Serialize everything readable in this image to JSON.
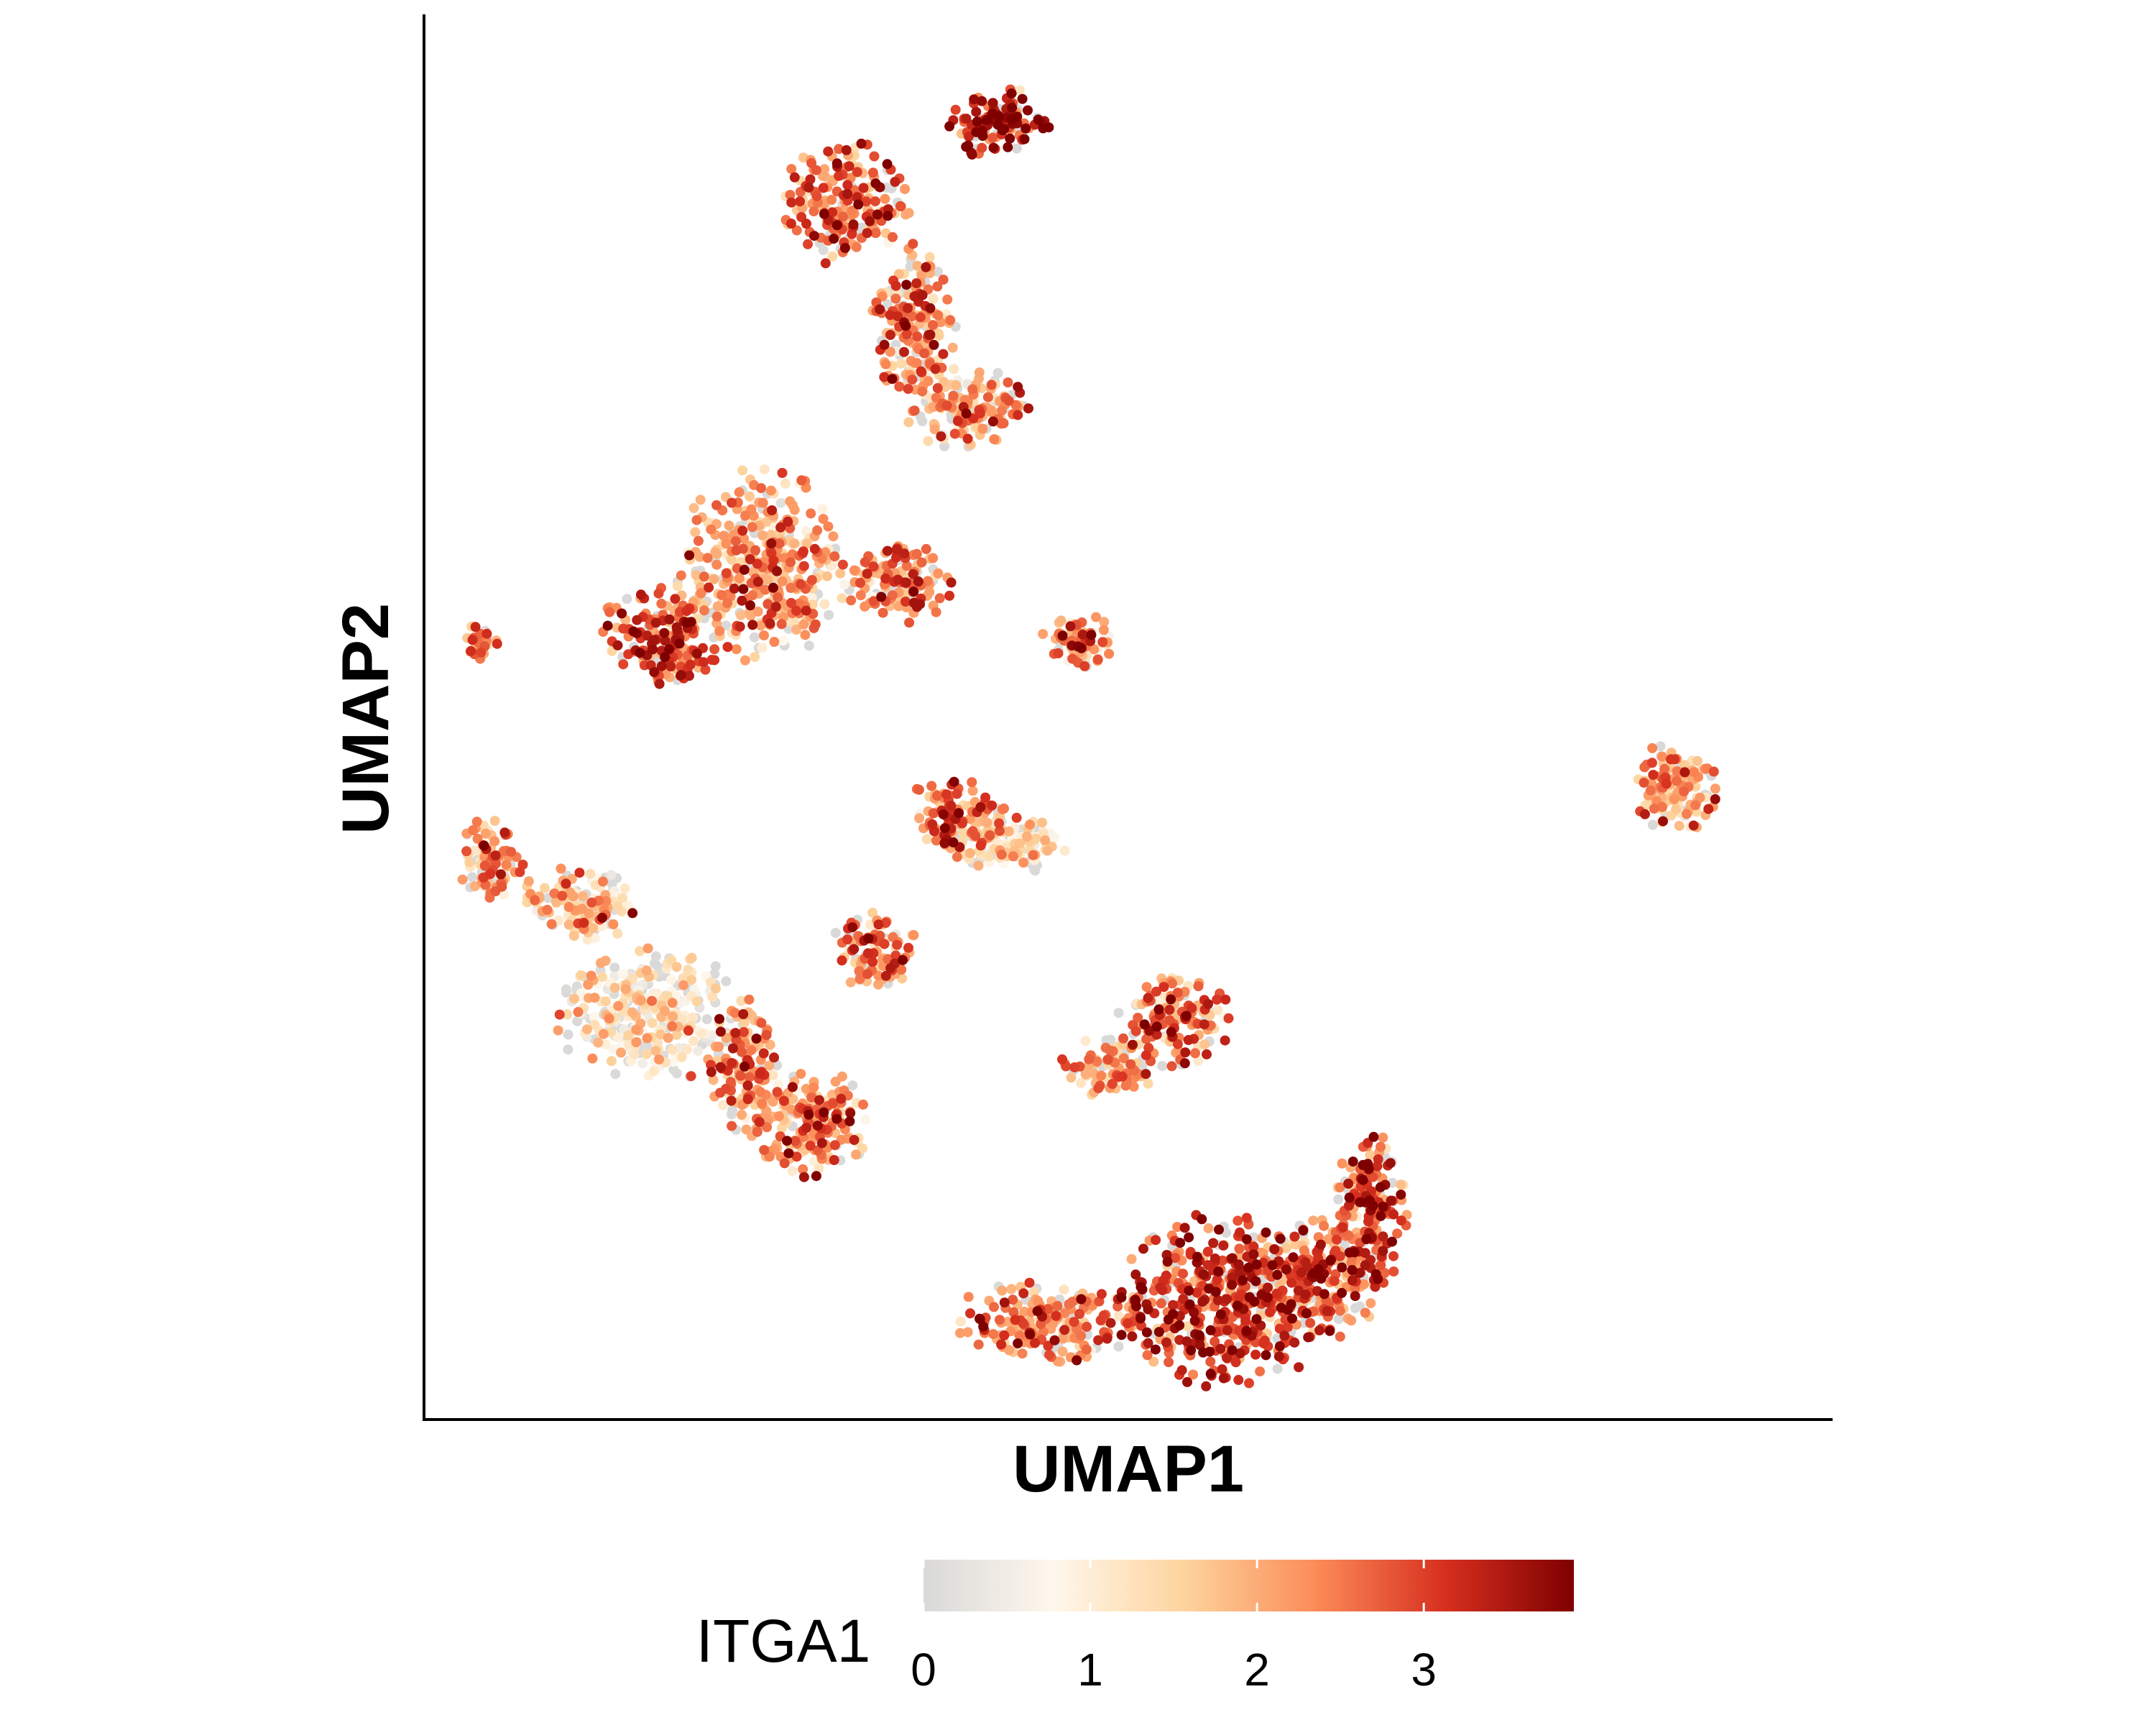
{
  "chart_data": {
    "type": "scatter",
    "title": "",
    "xlabel": "UMAP1",
    "ylabel": "UMAP2",
    "xlim": [
      -12,
      13
    ],
    "ylim": [
      -13,
      13
    ],
    "axis_ticks_shown": false,
    "grid": false,
    "color_scale": {
      "name": "ITGA1",
      "min": 0,
      "max": 3.9,
      "ticks": [
        "0",
        "1",
        "2",
        "3"
      ],
      "colors": [
        "#d9d9d9",
        "#fff7ec",
        "#fdd49e",
        "#fc8d59",
        "#d7301f",
        "#7f0000"
      ],
      "legend_position": "bottom"
    },
    "point_color_channel": "ITGA1 expression",
    "clusters": [
      {
        "center": [
          -4.5,
          9.5
        ],
        "spread": [
          0.9,
          0.9
        ],
        "mean_expression": 2.6
      },
      {
        "center": [
          -1.8,
          11.0
        ],
        "spread": [
          0.7,
          0.55
        ],
        "mean_expression": 3.4
      },
      {
        "center": [
          -3.3,
          7.2
        ],
        "spread": [
          0.6,
          1.2
        ],
        "mean_expression": 2.4
      },
      {
        "center": [
          -2.3,
          5.7
        ],
        "spread": [
          0.9,
          0.6
        ],
        "mean_expression": 2.1
      },
      {
        "center": [
          -6.0,
          2.8
        ],
        "spread": [
          1.2,
          1.4
        ],
        "mean_expression": 2.0
      },
      {
        "center": [
          -7.8,
          1.5
        ],
        "spread": [
          0.9,
          0.7
        ],
        "mean_expression": 2.8
      },
      {
        "center": [
          -3.6,
          2.5
        ],
        "spread": [
          0.8,
          0.6
        ],
        "mean_expression": 2.4
      },
      {
        "center": [
          -0.4,
          1.4
        ],
        "spread": [
          0.5,
          0.4
        ],
        "mean_expression": 2.3
      },
      {
        "center": [
          -11.0,
          1.4
        ],
        "spread": [
          0.25,
          0.25
        ],
        "mean_expression": 2.3
      },
      {
        "center": [
          10.2,
          -1.3
        ],
        "spread": [
          0.65,
          0.65
        ],
        "mean_expression": 2.0
      },
      {
        "center": [
          -10.8,
          -2.6
        ],
        "spread": [
          0.45,
          0.7
        ],
        "mean_expression": 2.3
      },
      {
        "center": [
          -9.3,
          -3.5
        ],
        "spread": [
          0.8,
          0.6
        ],
        "mean_expression": 1.6
      },
      {
        "center": [
          -2.6,
          -1.8
        ],
        "spread": [
          0.7,
          0.6
        ],
        "mean_expression": 2.6
      },
      {
        "center": [
          -4.0,
          -4.3
        ],
        "spread": [
          0.6,
          0.6
        ],
        "mean_expression": 2.5
      },
      {
        "center": [
          -1.7,
          -2.3
        ],
        "spread": [
          0.9,
          0.5
        ],
        "mean_expression": 1.5
      },
      {
        "center": [
          -6.3,
          -6.5
        ],
        "spread": [
          0.5,
          1.0
        ],
        "mean_expression": 2.4
      },
      {
        "center": [
          -5.2,
          -7.5
        ],
        "spread": [
          0.9,
          0.8
        ],
        "mean_expression": 2.3
      },
      {
        "center": [
          1.3,
          -5.6
        ],
        "spread": [
          0.8,
          0.7
        ],
        "mean_expression": 2.5
      },
      {
        "center": [
          0.2,
          -6.5
        ],
        "spread": [
          0.7,
          0.45
        ],
        "mean_expression": 2.0
      },
      {
        "center": [
          2.2,
          -10.8
        ],
        "spread": [
          1.5,
          1.3
        ],
        "mean_expression": 3.0
      },
      {
        "center": [
          -1.0,
          -11.2
        ],
        "spread": [
          1.3,
          0.6
        ],
        "mean_expression": 2.4
      },
      {
        "center": [
          4.8,
          -9.2
        ],
        "spread": [
          0.5,
          1.2
        ],
        "mean_expression": 2.9
      },
      {
        "center": [
          3.9,
          -10.4
        ],
        "spread": [
          0.9,
          0.9
        ],
        "mean_expression": 2.5
      },
      {
        "center": [
          -8.0,
          -5.5
        ],
        "spread": [
          1.3,
          1.0
        ],
        "mean_expression": 1.0
      }
    ]
  }
}
